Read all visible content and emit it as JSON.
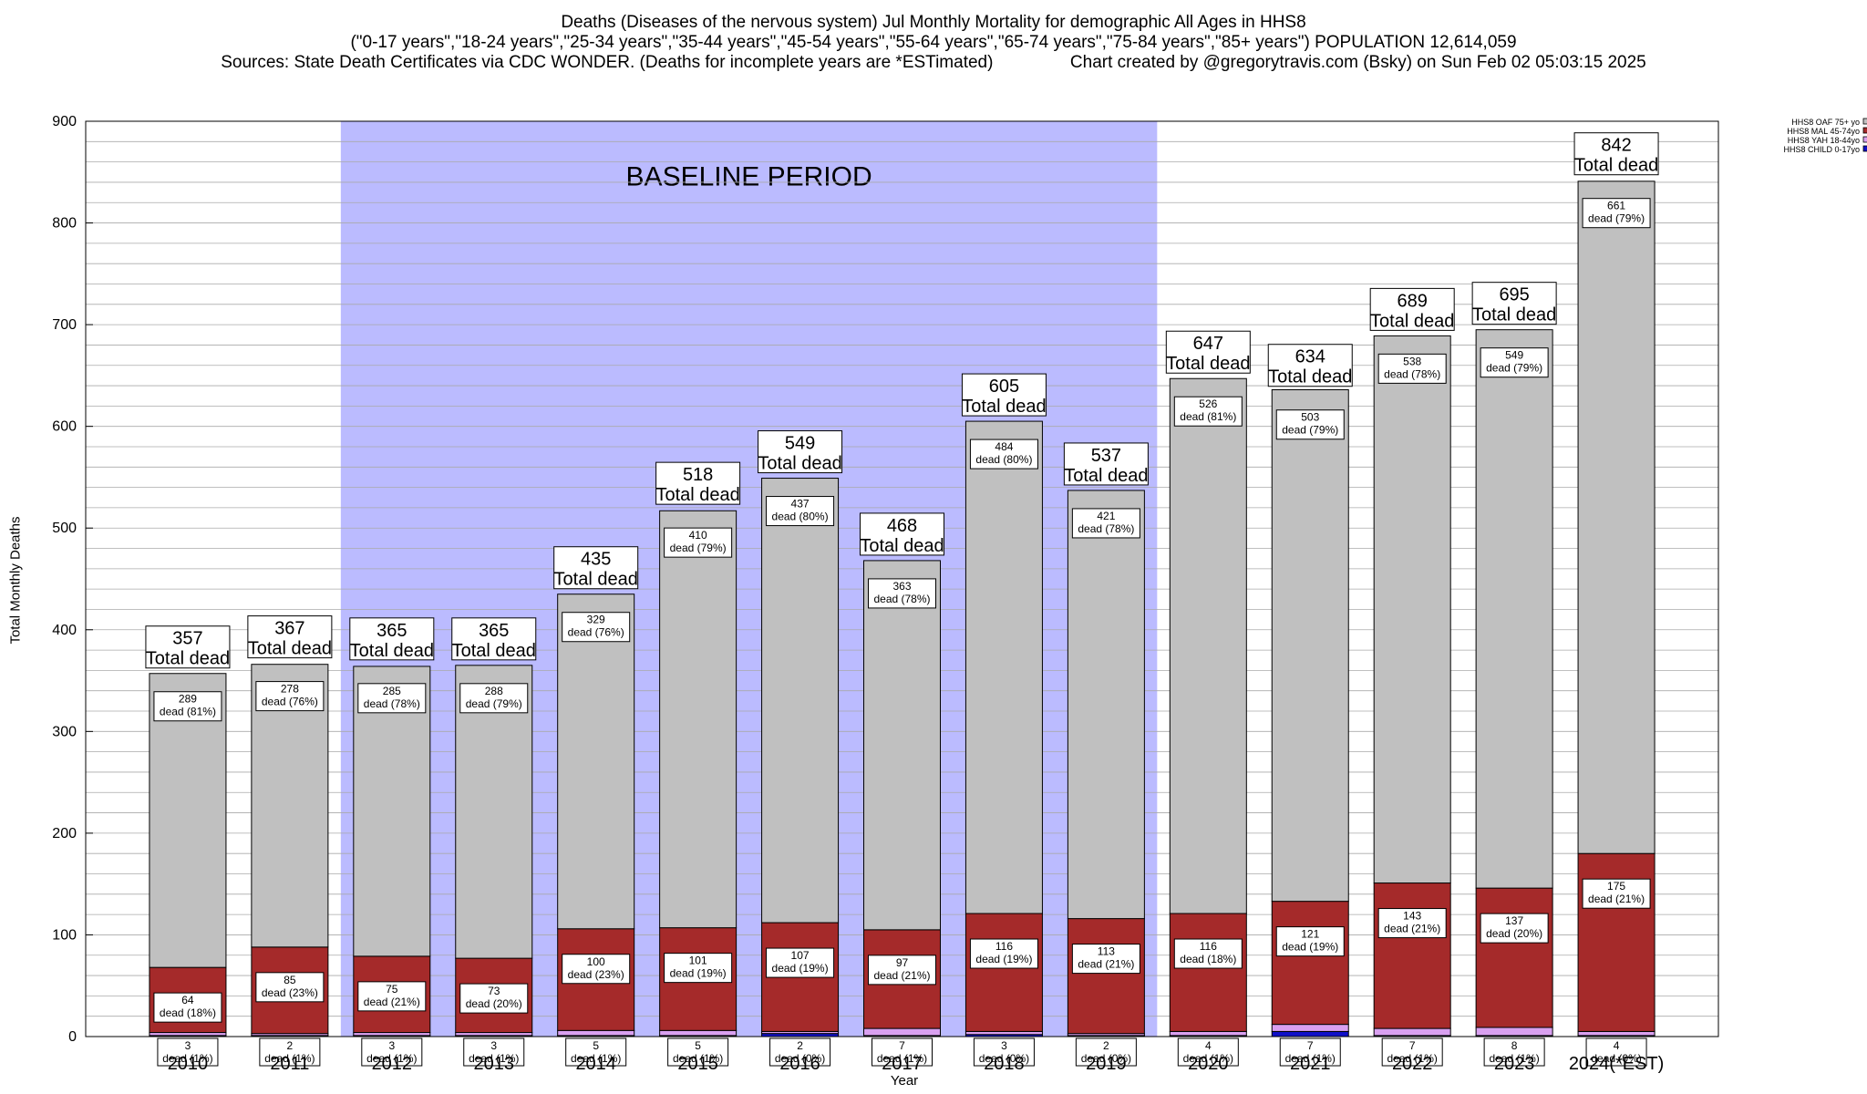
{
  "title": {
    "line1": "Deaths (Diseases of the nervous system) Jul Monthly Mortality for demographic All Ages in HHS8",
    "line2": "(\"0-17 years\",\"18-24 years\",\"25-34 years\",\"35-44 years\",\"45-54 years\",\"55-64 years\",\"65-74 years\",\"75-84 years\",\"85+ years\") POPULATION 12,614,059",
    "sources": "Sources: State Death Certificates via CDC WONDER. (Deaths for incomplete years are *ESTimated)",
    "credit": "Chart created by @gregorytravis.com (Bsky) on Sun Feb 02 05:03:15 2025"
  },
  "chart_data": {
    "type": "bar",
    "stacked": true,
    "categories": [
      "2010",
      "2011",
      "2012",
      "2013",
      "2014",
      "2015",
      "2016",
      "2017",
      "2018",
      "2019",
      "2020",
      "2021",
      "2022",
      "2023",
      "2024(*EST)"
    ],
    "totals": [
      357,
      367,
      365,
      365,
      435,
      518,
      549,
      468,
      605,
      537,
      647,
      634,
      689,
      695,
      842
    ],
    "total_label": "Total dead",
    "series": [
      {
        "name": "HHS8 CHILD 0-17yo",
        "color": "#1010c8",
        "values": [
          1,
          1,
          1,
          1,
          1,
          1,
          3,
          1,
          2,
          1,
          1,
          5,
          1,
          1,
          1
        ]
      },
      {
        "name": "HHS8 YAH 18-44yo",
        "color": "#d9a0f0",
        "values": [
          3,
          2,
          3,
          3,
          5,
          5,
          2,
          7,
          3,
          2,
          4,
          7,
          7,
          8,
          4
        ],
        "labels": [
          "dead (1%)",
          "dead (1%)",
          "dead (1%)",
          "dead (1%)",
          "dead (1%)",
          "dead (1%)",
          "dead (0%)",
          "dead (1%)",
          "dead (0%)",
          "dead (0%)",
          "dead (1%)",
          "dead (1%)",
          "dead (1%)",
          "dead (1%)",
          "dead (0%)"
        ]
      },
      {
        "name": "HHS8 MAL 45-74yo",
        "color": "#a52a2a",
        "values": [
          64,
          85,
          75,
          73,
          100,
          101,
          107,
          97,
          116,
          113,
          116,
          121,
          143,
          137,
          175
        ],
        "labels": [
          "dead (18%)",
          "dead (23%)",
          "dead (21%)",
          "dead (20%)",
          "dead (23%)",
          "dead (19%)",
          "dead (19%)",
          "dead (21%)",
          "dead (19%)",
          "dead (21%)",
          "dead (18%)",
          "dead (19%)",
          "dead (21%)",
          "dead (20%)",
          "dead (21%)"
        ]
      },
      {
        "name": "HHS8 OAF 75+ yo",
        "color": "#c0c0c0",
        "values": [
          289,
          278,
          285,
          288,
          329,
          410,
          437,
          363,
          484,
          421,
          526,
          503,
          538,
          549,
          661
        ],
        "labels": [
          "dead (81%)",
          "dead (76%)",
          "dead (78%)",
          "dead (79%)",
          "dead (76%)",
          "dead (79%)",
          "dead (80%)",
          "dead (78%)",
          "dead (80%)",
          "dead (78%)",
          "dead (81%)",
          "dead (79%)",
          "dead (78%)",
          "dead (79%)",
          "dead (79%)"
        ]
      }
    ],
    "legend_order": [
      "HHS8 OAF 75+ yo",
      "HHS8 MAL 45-74yo",
      "HHS8 YAH 18-44yo",
      "HHS8 CHILD 0-17yo"
    ],
    "legend_position": "top-right",
    "ylim": [
      0,
      900
    ],
    "yticks": [
      0,
      100,
      200,
      300,
      400,
      500,
      600,
      700,
      800,
      900
    ],
    "ylabel": "Total Monthly Deaths",
    "xlabel": "Year",
    "baseline": {
      "label": "BASELINE PERIOD",
      "from": "2012",
      "to": "2019",
      "color": "#bbbbff"
    },
    "grid": true
  }
}
